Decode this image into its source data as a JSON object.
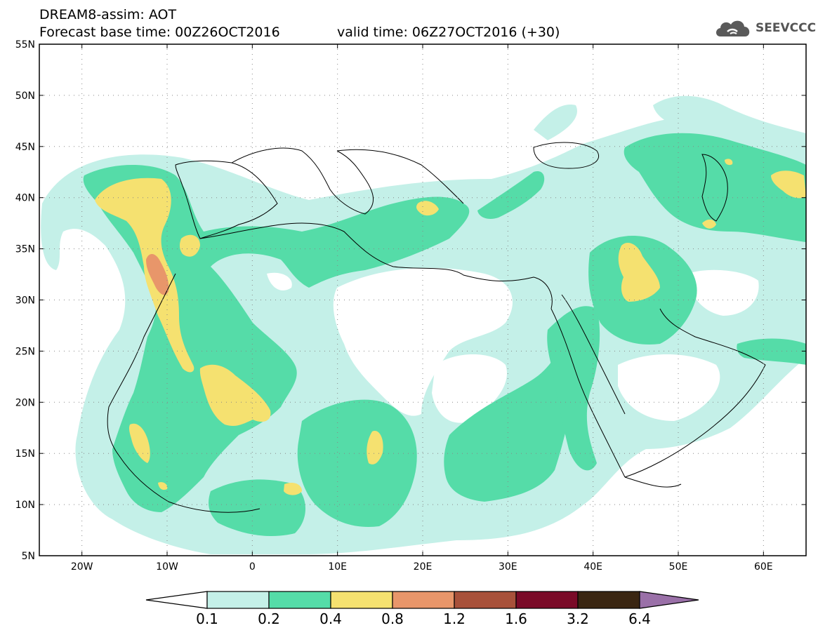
{
  "header": {
    "title_line1": "DREAM8-assim: AOT",
    "title_line2": "Forecast base time: 00Z26OCT2016",
    "valid_time": "valid time: 06Z27OCT2016 (+30)",
    "logo_text": "SEEVCCC",
    "logo_icon": "cloud-icon"
  },
  "map": {
    "variable": "AOT",
    "lon_range": [
      -25,
      65
    ],
    "lat_range": [
      5,
      55
    ],
    "lon_ticks": [
      {
        "value": -20,
        "label": "20W"
      },
      {
        "value": -10,
        "label": "10W"
      },
      {
        "value": 0,
        "label": "0"
      },
      {
        "value": 10,
        "label": "10E"
      },
      {
        "value": 20,
        "label": "20E"
      },
      {
        "value": 30,
        "label": "30E"
      },
      {
        "value": 40,
        "label": "40E"
      },
      {
        "value": 50,
        "label": "50E"
      },
      {
        "value": 60,
        "label": "60E"
      }
    ],
    "lat_ticks": [
      {
        "value": 55,
        "label": "55N"
      },
      {
        "value": 50,
        "label": "50N"
      },
      {
        "value": 45,
        "label": "45N"
      },
      {
        "value": 40,
        "label": "40N"
      },
      {
        "value": 35,
        "label": "35N"
      },
      {
        "value": 30,
        "label": "30N"
      },
      {
        "value": 25,
        "label": "25N"
      },
      {
        "value": 20,
        "label": "20N"
      },
      {
        "value": 15,
        "label": "15N"
      },
      {
        "value": 10,
        "label": "10N"
      },
      {
        "value": 5,
        "label": "5N"
      }
    ],
    "grid": true
  },
  "colorbar": {
    "labels": [
      "0.1",
      "0.2",
      "0.4",
      "0.8",
      "1.2",
      "1.6",
      "3.2",
      "6.4"
    ],
    "colors": [
      "#c4f0e8",
      "#55dca8",
      "#f5e170",
      "#e8966a",
      "#a8513a",
      "#7a0a28",
      "#3a2612"
    ],
    "low_arrow_color": "#ffffff",
    "high_arrow_color": "#9a70a8"
  },
  "field_colors": {
    "level1": "#c4f0e8",
    "level2": "#55dca8",
    "level3": "#f5e170",
    "level4": "#e8966a"
  }
}
